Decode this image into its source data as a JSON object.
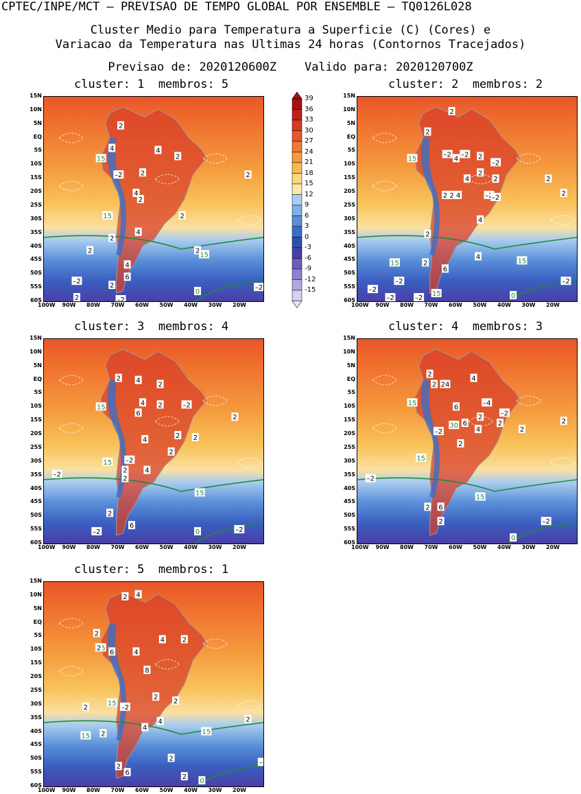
{
  "header": {
    "line1": "CPTEC/INPE/MCT – PREVISAO DE TEMPO GLOBAL POR ENSEMBLE – TQ0126L028",
    "line2": "Cluster Medio para Temperatura a Superficie (C) (Cores) e",
    "line3": "Variacao da Temperatura nas Ultimas 24 horas (Contornos Tracejados)",
    "line4": "Previsao de: 2020120600Z    Valido para: 2020120700Z"
  },
  "axes": {
    "lat_labels": [
      "15N",
      "10N",
      "5N",
      "EQ",
      "5S",
      "10S",
      "15S",
      "20S",
      "25S",
      "30S",
      "35S",
      "40S",
      "45S",
      "50S",
      "55S",
      "60S"
    ],
    "lon_labels": [
      "100W",
      "90W",
      "80W",
      "70W",
      "60W",
      "50W",
      "40W",
      "30W",
      "20W"
    ]
  },
  "colorbar": {
    "labels": [
      "39",
      "36",
      "33",
      "30",
      "27",
      "24",
      "21",
      "18",
      "15",
      "12",
      "9",
      "6",
      "3",
      "0",
      "-3",
      "-6",
      "-9",
      "-12",
      "-15"
    ],
    "colors": [
      "#a50f15",
      "#c2201d",
      "#d93a24",
      "#e8562a",
      "#f07a32",
      "#f59b3e",
      "#f8bc4e",
      "#fbd87a",
      "#fbe9a6",
      "#a9cdef",
      "#7fb0e6",
      "#5a8fd8",
      "#3a6fc8",
      "#2f4fb0",
      "#4a3fa6",
      "#6c5cbc",
      "#8f80cf",
      "#b4a8e0",
      "#d8d0f0"
    ]
  },
  "clusters": [
    {
      "label": "cluster: 1  membros: 5",
      "contours": [
        {
          "t": "15",
          "c": "g"
        },
        {
          "t": "15",
          "c": "g"
        },
        {
          "t": "15",
          "c": "g"
        },
        {
          "t": "0",
          "c": "g"
        },
        {
          "t": "2",
          "c": "w"
        },
        {
          "t": "4",
          "c": "w"
        },
        {
          "t": "4",
          "c": "w"
        },
        {
          "t": "2",
          "c": "w"
        },
        {
          "t": "–2",
          "c": "w"
        },
        {
          "t": "2",
          "c": "w"
        },
        {
          "t": "4",
          "c": "w"
        },
        {
          "t": "2",
          "c": "w"
        },
        {
          "t": "2",
          "c": "w"
        },
        {
          "t": "2",
          "c": "w"
        },
        {
          "t": "2",
          "c": "w"
        },
        {
          "t": "4",
          "c": "w"
        },
        {
          "t": "2",
          "c": "w"
        },
        {
          "t": "2",
          "c": "w"
        },
        {
          "t": "4",
          "c": "w"
        },
        {
          "t": "6",
          "c": "w"
        },
        {
          "t": "2",
          "c": "w"
        },
        {
          "t": "–2",
          "c": "w"
        },
        {
          "t": "2",
          "c": "w"
        },
        {
          "t": "–2",
          "c": "w"
        },
        {
          "t": "–2",
          "c": "w"
        }
      ]
    },
    {
      "label": "cluster: 2  membros: 2",
      "contours": [
        {
          "t": "15",
          "c": "g"
        },
        {
          "t": "15",
          "c": "g"
        },
        {
          "t": "15",
          "c": "g"
        },
        {
          "t": "15",
          "c": "g"
        },
        {
          "t": "0",
          "c": "g"
        },
        {
          "t": "2",
          "c": "w"
        },
        {
          "t": "2",
          "c": "w"
        },
        {
          "t": "–2",
          "c": "w"
        },
        {
          "t": "4",
          "c": "w"
        },
        {
          "t": "–2",
          "c": "w"
        },
        {
          "t": "2",
          "c": "w"
        },
        {
          "t": "–2",
          "c": "w"
        },
        {
          "t": "2",
          "c": "w"
        },
        {
          "t": "2",
          "c": "w"
        },
        {
          "t": "2",
          "c": "w"
        },
        {
          "t": "2",
          "c": "w"
        },
        {
          "t": "4",
          "c": "w"
        },
        {
          "t": "–2",
          "c": "w"
        },
        {
          "t": "–2",
          "c": "w"
        },
        {
          "t": "4",
          "c": "w"
        },
        {
          "t": "2",
          "c": "w"
        },
        {
          "t": "4",
          "c": "w"
        },
        {
          "t": "6",
          "c": "w"
        },
        {
          "t": "2",
          "c": "w"
        },
        {
          "t": "–2",
          "c": "w"
        },
        {
          "t": "–2",
          "c": "w"
        },
        {
          "t": "–2",
          "c": "w"
        },
        {
          "t": "–2",
          "c": "w"
        },
        {
          "t": "–2",
          "c": "w"
        },
        {
          "t": "4",
          "c": "w"
        },
        {
          "t": "2",
          "c": "w"
        },
        {
          "t": "2",
          "c": "w"
        }
      ]
    },
    {
      "label": "cluster: 3  membros: 4",
      "contours": [
        {
          "t": "15",
          "c": "g"
        },
        {
          "t": "15",
          "c": "g"
        },
        {
          "t": "15",
          "c": "g"
        },
        {
          "t": "0",
          "c": "g"
        },
        {
          "t": "2",
          "c": "w"
        },
        {
          "t": "4",
          "c": "w"
        },
        {
          "t": "2",
          "c": "w"
        },
        {
          "t": "4",
          "c": "w"
        },
        {
          "t": "2",
          "c": "w"
        },
        {
          "t": "–2",
          "c": "w"
        },
        {
          "t": "6",
          "c": "w"
        },
        {
          "t": "4",
          "c": "w"
        },
        {
          "t": "2",
          "c": "w"
        },
        {
          "t": "2",
          "c": "w"
        },
        {
          "t": "–2",
          "c": "w"
        },
        {
          "t": "2",
          "c": "w"
        },
        {
          "t": "4",
          "c": "w"
        },
        {
          "t": "2",
          "c": "w"
        },
        {
          "t": "2",
          "c": "w"
        },
        {
          "t": "–2",
          "c": "w"
        },
        {
          "t": "6",
          "c": "w"
        },
        {
          "t": "2",
          "c": "w"
        },
        {
          "t": "–2",
          "c": "w"
        },
        {
          "t": "–2",
          "c": "w"
        },
        {
          "t": "2",
          "c": "w"
        }
      ]
    },
    {
      "label": "cluster: 4  membros: 3",
      "contours": [
        {
          "t": "15",
          "c": "g"
        },
        {
          "t": "15",
          "c": "g"
        },
        {
          "t": "15",
          "c": "g"
        },
        {
          "t": "0",
          "c": "g"
        },
        {
          "t": "30",
          "c": "g"
        },
        {
          "t": "2",
          "c": "w"
        },
        {
          "t": "2",
          "c": "w"
        },
        {
          "t": "24",
          "c": "w"
        },
        {
          "t": "4",
          "c": "w"
        },
        {
          "t": "6",
          "c": "w"
        },
        {
          "t": "–4",
          "c": "w"
        },
        {
          "t": "6",
          "c": "w"
        },
        {
          "t": "2",
          "c": "w"
        },
        {
          "t": "4",
          "c": "w"
        },
        {
          "t": "–2",
          "c": "w"
        },
        {
          "t": "2",
          "c": "w"
        },
        {
          "t": "–2",
          "c": "w"
        },
        {
          "t": "2",
          "c": "w"
        },
        {
          "t": "2",
          "c": "w"
        },
        {
          "t": "–2",
          "c": "w"
        },
        {
          "t": "2",
          "c": "w"
        },
        {
          "t": "6",
          "c": "w"
        },
        {
          "t": "2",
          "c": "w"
        },
        {
          "t": "–2",
          "c": "w"
        },
        {
          "t": "2",
          "c": "w"
        }
      ]
    },
    {
      "label": "cluster: 5  membros: 1",
      "contours": [
        {
          "t": "15",
          "c": "g"
        },
        {
          "t": "15",
          "c": "g"
        },
        {
          "t": "15",
          "c": "g"
        },
        {
          "t": "15",
          "c": "g"
        },
        {
          "t": "0",
          "c": "g"
        },
        {
          "t": "2",
          "c": "w"
        },
        {
          "t": "4",
          "c": "w"
        },
        {
          "t": "2",
          "c": "w"
        },
        {
          "t": "2",
          "c": "w"
        },
        {
          "t": "6",
          "c": "w"
        },
        {
          "t": "4",
          "c": "w"
        },
        {
          "t": "8",
          "c": "w"
        },
        {
          "t": "2",
          "c": "w"
        },
        {
          "t": "4",
          "c": "w"
        },
        {
          "t": "2",
          "c": "w"
        },
        {
          "t": "2",
          "c": "w"
        },
        {
          "t": "–2",
          "c": "w"
        },
        {
          "t": "2",
          "c": "w"
        },
        {
          "t": "4",
          "c": "w"
        },
        {
          "t": "4",
          "c": "w"
        },
        {
          "t": "2",
          "c": "w"
        },
        {
          "t": "2",
          "c": "w"
        },
        {
          "t": "6",
          "c": "w"
        },
        {
          "t": "2",
          "c": "w"
        },
        {
          "t": "2",
          "c": "w"
        },
        {
          "t": "2",
          "c": "w"
        },
        {
          "t": "–",
          "c": "w"
        }
      ]
    }
  ]
}
